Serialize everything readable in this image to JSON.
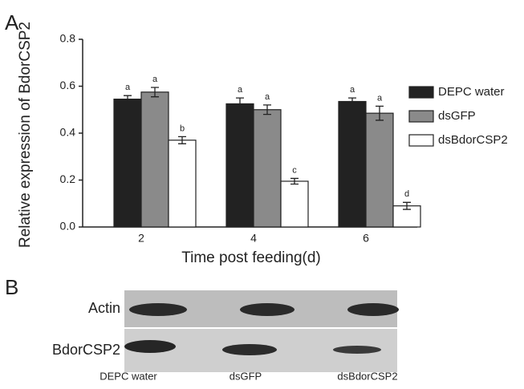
{
  "chart_data": {
    "type": "bar",
    "panel_label": "A",
    "y_label": "Relative expression of BdorCSP2",
    "x_label": "Time post feeding(d)",
    "categories": [
      "2",
      "4",
      "6"
    ],
    "series": [
      {
        "name": "DEPC water",
        "color": "#222222",
        "values": [
          0.545,
          0.525,
          0.535
        ],
        "errors": [
          0.015,
          0.025,
          0.015
        ],
        "letters": [
          "a",
          "a",
          "a"
        ]
      },
      {
        "name": "dsGFP",
        "color": "#8a8a8a",
        "values": [
          0.575,
          0.5,
          0.485
        ],
        "errors": [
          0.02,
          0.02,
          0.03
        ],
        "letters": [
          "a",
          "a",
          "a"
        ]
      },
      {
        "name": "dsBdorCSP2",
        "color": "#ffffff",
        "values": [
          0.37,
          0.195,
          0.09
        ],
        "errors": [
          0.015,
          0.012,
          0.015
        ],
        "letters": [
          "b",
          "c",
          "d"
        ]
      }
    ],
    "ylim": [
      0,
      0.8
    ],
    "yticks": [
      {
        "value": 0,
        "label": "0.0"
      },
      0.2,
      0.4,
      0.6,
      0.8
    ],
    "grid": false
  },
  "blot": {
    "panel_label": "B",
    "rows": [
      "Actin",
      "BdorCSP2"
    ],
    "lanes": [
      "DEPC water",
      "dsGFP",
      "dsBdorCSP2"
    ]
  }
}
